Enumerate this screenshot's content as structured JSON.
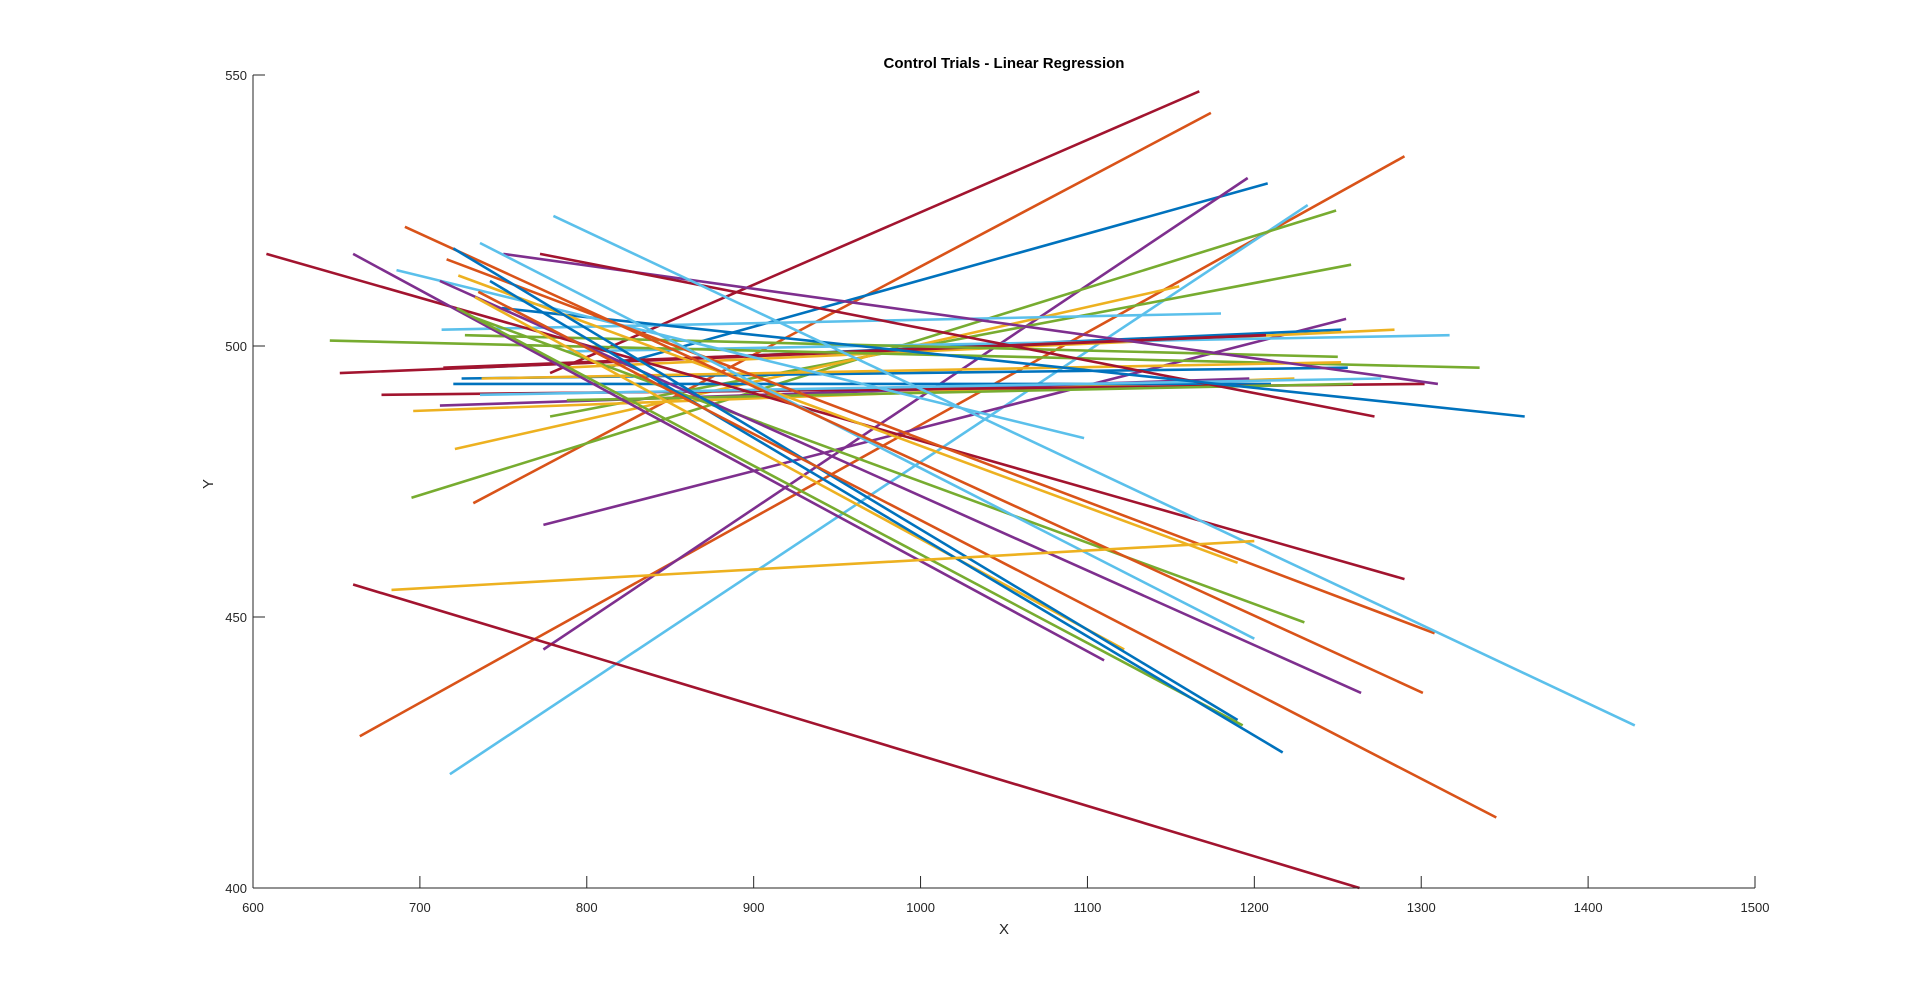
{
  "chart_data": {
    "type": "line",
    "title": "Control Trials - Linear Regression",
    "xlabel": "X",
    "ylabel": "Y",
    "xlim": [
      600,
      1500
    ],
    "ylim": [
      400,
      550
    ],
    "xticks": [
      600,
      700,
      800,
      900,
      1000,
      1100,
      1200,
      1300,
      1400,
      1500
    ],
    "yticks": [
      400,
      450,
      500,
      550
    ],
    "xtick_labels": [
      "600",
      "700",
      "800",
      "900",
      "1000",
      "1100",
      "1200",
      "1300",
      "1400",
      "1500"
    ],
    "ytick_labels": [
      "400",
      "450",
      "500",
      "550"
    ],
    "grid": false,
    "legend": "none",
    "colors": [
      "#0072BD",
      "#D95319",
      "#EDB120",
      "#7E2F8E",
      "#77AC30",
      "#4DBEEE",
      "#A2142F"
    ],
    "series": [
      {
        "color": "#A2142F",
        "x": [
          778,
          1167
        ],
        "y": [
          495,
          547
        ]
      },
      {
        "color": "#D95319",
        "x": [
          732,
          1174
        ],
        "y": [
          471,
          543
        ]
      },
      {
        "color": "#0072BD",
        "x": [
          812,
          1208
        ],
        "y": [
          496,
          530
        ]
      },
      {
        "color": "#D95319",
        "x": [
          664,
          1290
        ],
        "y": [
          428,
          535
        ]
      },
      {
        "color": "#7E2F8E",
        "x": [
          774,
          1196
        ],
        "y": [
          444,
          531
        ]
      },
      {
        "color": "#5BC0EB",
        "x": [
          718,
          1232
        ],
        "y": [
          421,
          526
        ]
      },
      {
        "color": "#77AC30",
        "x": [
          695,
          1249
        ],
        "y": [
          472,
          525
        ]
      },
      {
        "color": "#77AC30",
        "x": [
          778,
          1258
        ],
        "y": [
          487,
          515
        ]
      },
      {
        "color": "#EDB120",
        "x": [
          721,
          1155
        ],
        "y": [
          481,
          511
        ]
      },
      {
        "color": "#7E2F8E",
        "x": [
          774,
          1255
        ],
        "y": [
          467,
          505
        ]
      },
      {
        "color": "#5BC0EB",
        "x": [
          713,
          1180
        ],
        "y": [
          503,
          506
        ]
      },
      {
        "color": "#0072BD",
        "x": [
          732,
          1252
        ],
        "y": [
          496,
          503
        ]
      },
      {
        "color": "#EDB120",
        "x": [
          786,
          1284
        ],
        "y": [
          496,
          503
        ]
      },
      {
        "color": "#5BC0EB",
        "x": [
          788,
          1317
        ],
        "y": [
          499,
          502
        ]
      },
      {
        "color": "#A2142F",
        "x": [
          714,
          1206
        ],
        "y": [
          496,
          502
        ]
      },
      {
        "color": "#A2142F",
        "x": [
          652,
          1207
        ],
        "y": [
          495,
          502
        ]
      },
      {
        "color": "#77AC30",
        "x": [
          727,
          1250
        ],
        "y": [
          502,
          498
        ]
      },
      {
        "color": "#77AC30",
        "x": [
          646,
          1335
        ],
        "y": [
          501,
          496
        ]
      },
      {
        "color": "#0072BD",
        "x": [
          725,
          1256
        ],
        "y": [
          494,
          496
        ]
      },
      {
        "color": "#EDB120",
        "x": [
          737,
          1252
        ],
        "y": [
          494,
          497
        ]
      },
      {
        "color": "#EDB120",
        "x": [
          696,
          1224
        ],
        "y": [
          488,
          494
        ]
      },
      {
        "color": "#7E2F8E",
        "x": [
          712,
          1197
        ],
        "y": [
          489,
          494
        ]
      },
      {
        "color": "#0072BD",
        "x": [
          720,
          1210
        ],
        "y": [
          493,
          493
        ]
      },
      {
        "color": "#A2142F",
        "x": [
          677,
          1302
        ],
        "y": [
          491,
          493
        ]
      },
      {
        "color": "#77AC30",
        "x": [
          788,
          1259
        ],
        "y": [
          490,
          493
        ]
      },
      {
        "color": "#5BC0EB",
        "x": [
          736,
          1276
        ],
        "y": [
          491,
          494
        ]
      },
      {
        "color": "#7E2F8E",
        "x": [
          750,
          1310
        ],
        "y": [
          517,
          493
        ]
      },
      {
        "color": "#A2142F",
        "x": [
          772,
          1272
        ],
        "y": [
          517,
          487
        ]
      },
      {
        "color": "#0072BD",
        "x": [
          749,
          1362
        ],
        "y": [
          507,
          487
        ]
      },
      {
        "color": "#5BC0EB",
        "x": [
          686,
          1098
        ],
        "y": [
          514,
          483
        ]
      },
      {
        "color": "#A2142F",
        "x": [
          608,
          1290
        ],
        "y": [
          517,
          457
        ]
      },
      {
        "color": "#D95319",
        "x": [
          716,
          1308
        ],
        "y": [
          516,
          447
        ]
      },
      {
        "color": "#EDB120",
        "x": [
          723,
          1190
        ],
        "y": [
          513,
          460
        ]
      },
      {
        "color": "#5BC0EB",
        "x": [
          780,
          1428
        ],
        "y": [
          524,
          430
        ]
      },
      {
        "color": "#77AC30",
        "x": [
          726,
          1230
        ],
        "y": [
          506,
          449
        ]
      },
      {
        "color": "#5BC0EB",
        "x": [
          736,
          1200
        ],
        "y": [
          519,
          446
        ]
      },
      {
        "color": "#7E2F8E",
        "x": [
          712,
          1264
        ],
        "y": [
          512,
          436
        ]
      },
      {
        "color": "#D95319",
        "x": [
          691,
          1301
        ],
        "y": [
          522,
          436
        ]
      },
      {
        "color": "#EDB120",
        "x": [
          733,
          1122
        ],
        "y": [
          509,
          444
        ]
      },
      {
        "color": "#7E2F8E",
        "x": [
          660,
          1110
        ],
        "y": [
          517,
          442
        ]
      },
      {
        "color": "#0072BD",
        "x": [
          720,
          1190
        ],
        "y": [
          518,
          431
        ]
      },
      {
        "color": "#77AC30",
        "x": [
          722,
          1193
        ],
        "y": [
          507,
          430
        ]
      },
      {
        "color": "#0072BD",
        "x": [
          742,
          1217
        ],
        "y": [
          512,
          425
        ]
      },
      {
        "color": "#D95319",
        "x": [
          735,
          1345
        ],
        "y": [
          510,
          413
        ]
      },
      {
        "color": "#EDB120",
        "x": [
          683,
          1200
        ],
        "y": [
          455,
          464
        ]
      },
      {
        "color": "#A2142F",
        "x": [
          660,
          1263
        ],
        "y": [
          456,
          400
        ]
      }
    ]
  }
}
